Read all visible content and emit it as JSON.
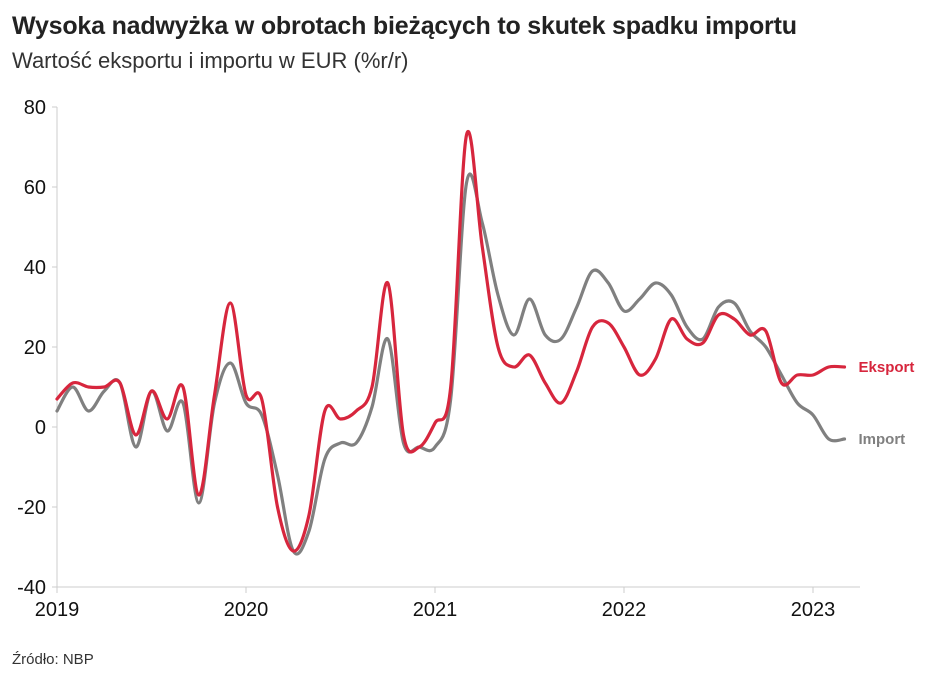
{
  "header": {
    "title": "Wysoka nadwyżka w obrotach bieżących to skutek spadku importu",
    "subtitle": "Wartość eksportu i importu w EUR (%r/r)"
  },
  "footer": {
    "source": "Źródło: NBP"
  },
  "colors": {
    "eksport": "#d7263d",
    "import": "#808080",
    "axis": "#cccccc",
    "text": "#222222"
  },
  "chart_data": {
    "type": "line",
    "title": "Wysoka nadwyżka w obrotach bieżących to skutek spadku importu",
    "subtitle": "Wartość eksportu i importu w EUR (%r/r)",
    "xlabel": "",
    "ylabel": "",
    "ylim": [
      -40,
      80
    ],
    "yticks": [
      "80",
      "60",
      "40",
      "20",
      "0",
      "-20",
      "-40"
    ],
    "ytick_values": [
      80,
      60,
      40,
      20,
      0,
      -20,
      -40
    ],
    "xticks": [
      "2019",
      "2020",
      "2021",
      "2022",
      "2023"
    ],
    "xtick_values": [
      2019,
      2020,
      2021,
      2022,
      2023
    ],
    "grid": false,
    "legend": "labels at line ends (right)",
    "x": [
      "2019-01",
      "2019-02",
      "2019-03",
      "2019-04",
      "2019-05",
      "2019-06",
      "2019-07",
      "2019-08",
      "2019-09",
      "2019-10",
      "2019-11",
      "2019-12",
      "2020-01",
      "2020-02",
      "2020-03",
      "2020-04",
      "2020-05",
      "2020-06",
      "2020-07",
      "2020-08",
      "2020-09",
      "2020-10",
      "2020-11",
      "2020-12",
      "2021-01",
      "2021-02",
      "2021-03",
      "2021-04",
      "2021-05",
      "2021-06",
      "2021-07",
      "2021-08",
      "2021-09",
      "2021-10",
      "2021-11",
      "2021-12",
      "2022-01",
      "2022-02",
      "2022-03",
      "2022-04",
      "2022-05",
      "2022-06",
      "2022-07",
      "2022-08",
      "2022-09",
      "2022-10",
      "2022-11",
      "2022-12",
      "2023-01",
      "2023-02",
      "2023-03"
    ],
    "series": [
      {
        "name": "Eksport",
        "color": "#d7263d",
        "values": [
          7,
          11,
          10,
          10,
          11,
          -2,
          9,
          2,
          10,
          -17,
          8,
          31,
          8,
          7,
          -20,
          -31,
          -22,
          4,
          2,
          4,
          10,
          36,
          -2,
          -5,
          1,
          10,
          73,
          45,
          20,
          15,
          18,
          11,
          6,
          14,
          25,
          26,
          20,
          13,
          17,
          27,
          22,
          21,
          28,
          27,
          23,
          24,
          11,
          13,
          13,
          15,
          15
        ]
      },
      {
        "name": "Import",
        "color": "#808080",
        "values": [
          4,
          10,
          4,
          9,
          11,
          -5,
          9,
          -1,
          6,
          -19,
          6,
          16,
          6,
          3,
          -12,
          -31,
          -26,
          -8,
          -4,
          -4,
          5,
          22,
          -4,
          -5,
          -5,
          7,
          61,
          51,
          33,
          23,
          32,
          23,
          22,
          30,
          39,
          36,
          29,
          32,
          36,
          33,
          25,
          22,
          30,
          31,
          24,
          20,
          13,
          6,
          3,
          -3,
          -3
        ]
      }
    ],
    "end_labels": [
      "Eksport",
      "Import"
    ]
  }
}
